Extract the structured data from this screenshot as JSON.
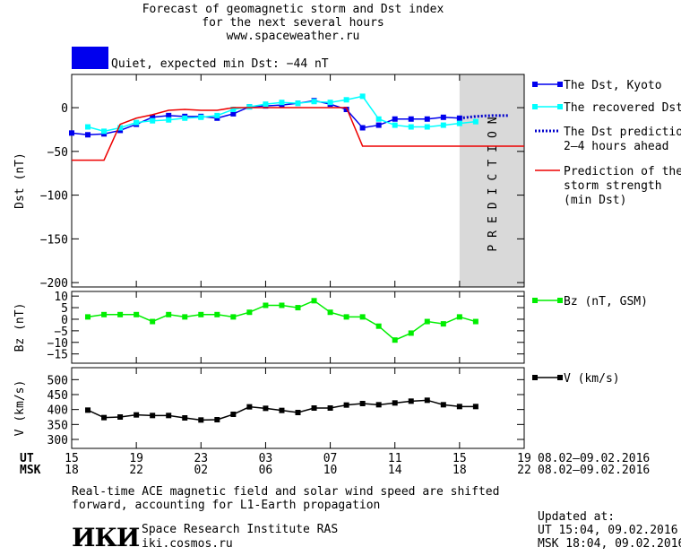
{
  "header": {
    "title_lines": [
      "Forecast of geomagnetic storm and Dst index",
      "for the next several hours",
      "www.spaceweather.ru"
    ],
    "status_text": "Quiet, expected min Dst: −44 nT",
    "status_color": "#0000ee"
  },
  "chart_data": [
    {
      "type": "line",
      "ylabel": "Dst (nT)",
      "ylim": [
        -205,
        38
      ],
      "yticks": [
        0,
        -50,
        -100,
        -150,
        -200
      ],
      "ytick_labels": [
        "0",
        "−50",
        "−100",
        "−150",
        "−200"
      ],
      "x_unit": "hours from 15 UT 08.02.2016",
      "xlim": [
        0,
        28
      ],
      "shaded_region": {
        "x_start": 24,
        "x_end": 28,
        "label": "PREDICTION",
        "color": "#d9d9d9"
      },
      "series": [
        {
          "name": "The Dst, Kyoto",
          "color": "#0000ee",
          "marker": "square",
          "x": [
            0,
            1,
            2,
            3,
            4,
            5,
            6,
            7,
            8,
            9,
            10,
            11,
            12,
            13,
            14,
            15,
            16,
            17,
            18,
            19,
            20,
            21,
            22,
            23,
            24
          ],
          "y": [
            -29,
            -31,
            -30,
            -26,
            -19,
            -11,
            -9,
            -10,
            -10,
            -12,
            -7,
            1,
            2,
            3,
            5,
            8,
            4,
            -2,
            -23,
            -20,
            -13,
            -13,
            -13,
            -11,
            -12
          ]
        },
        {
          "name": "The recovered Dst",
          "color": "#00ffff",
          "marker": "square",
          "x": [
            1,
            2,
            3,
            4,
            5,
            6,
            7,
            8,
            9,
            10,
            11,
            12,
            13,
            14,
            15,
            16,
            17,
            18,
            19,
            20,
            21,
            22,
            23,
            24,
            25
          ],
          "y": [
            -22,
            -27,
            -23,
            -17,
            -15,
            -14,
            -12,
            -11,
            -9,
            -2,
            1,
            4,
            6,
            5,
            7,
            6,
            9,
            13,
            -13,
            -20,
            -22,
            -22,
            -20,
            -18,
            -16
          ]
        },
        {
          "name": "The Dst prediction",
          "name_line2": "2–4 hours ahead",
          "color": "#0000cc",
          "dashed": true,
          "x": [
            24,
            25,
            26,
            27
          ],
          "y": [
            -12,
            -10,
            -9,
            -9
          ]
        },
        {
          "name": "Prediction of the",
          "name_line2": "storm strength",
          "name_line3": "(min Dst)",
          "color": "#ee0000",
          "step": true,
          "x": [
            0,
            2,
            3,
            4,
            5,
            6,
            7,
            8,
            9,
            10,
            11,
            12,
            13,
            14,
            15,
            16,
            17,
            18,
            19,
            20,
            21,
            22,
            23,
            24,
            25,
            26,
            27,
            28
          ],
          "y": [
            -60,
            -60,
            -19,
            -12,
            -8,
            -3,
            -2,
            -3,
            -3,
            0,
            0,
            0,
            0,
            0,
            0,
            0,
            0,
            -44,
            -44,
            -44,
            -44,
            -44,
            -44,
            -44,
            -44,
            -44,
            -44,
            -44
          ]
        }
      ],
      "prediction_label": "PREDICTION"
    },
    {
      "type": "line",
      "ylabel": "Bz (nT)",
      "ylim": [
        -19,
        12
      ],
      "yticks": [
        10,
        5,
        0,
        -5,
        -10,
        -15
      ],
      "ytick_labels": [
        "10",
        "5",
        "0",
        "−5",
        "−10",
        "−15"
      ],
      "series": [
        {
          "name": "Bz (nT, GSM)",
          "color": "#00ee00",
          "marker": "square",
          "x": [
            1,
            2,
            3,
            4,
            5,
            6,
            7,
            8,
            9,
            10,
            11,
            12,
            13,
            14,
            15,
            16,
            17,
            18,
            19,
            20,
            21,
            22,
            23,
            24,
            25
          ],
          "y": [
            1,
            2,
            2,
            2,
            -1,
            2,
            1,
            2,
            2,
            1,
            3,
            6,
            6,
            5,
            8,
            3,
            1,
            1,
            -3,
            -9,
            -6,
            -1,
            -2,
            1,
            -1
          ]
        }
      ]
    },
    {
      "type": "line",
      "ylabel": "V (km/s)",
      "ylim": [
        270,
        540
      ],
      "yticks": [
        500,
        450,
        400,
        350,
        300
      ],
      "ytick_labels": [
        "500",
        "450",
        "400",
        "350",
        "300"
      ],
      "series": [
        {
          "name": "V (km/s)",
          "color": "#000000",
          "marker": "square",
          "x": [
            1,
            2,
            3,
            4,
            5,
            6,
            7,
            8,
            9,
            10,
            11,
            12,
            13,
            14,
            15,
            16,
            17,
            18,
            19,
            20,
            21,
            22,
            23,
            24,
            25
          ],
          "y": [
            398,
            373,
            375,
            382,
            380,
            380,
            372,
            365,
            366,
            384,
            409,
            404,
            397,
            390,
            405,
            405,
            415,
            420,
            416,
            422,
            428,
            431,
            416,
            410,
            410
          ]
        }
      ]
    }
  ],
  "x_axis": {
    "ut_label": "UT",
    "msk_label": "MSK",
    "ut_ticks": [
      "15",
      "19",
      "23",
      "03",
      "07",
      "11",
      "15",
      "19"
    ],
    "msk_ticks": [
      "18",
      "22",
      "02",
      "06",
      "10",
      "14",
      "18",
      "22"
    ],
    "date_range": "08.02–09.02.2016"
  },
  "footer": {
    "note_line1": "Real-time ACE magnetic field and solar wind speed are shifted",
    "note_line2": "forward, accounting for L1-Earth propagation",
    "logo_text": "ИКИ",
    "institute_name": "Space Research Institute RAS",
    "institute_url": "iki.cosmos.ru",
    "updated_label": "Updated at:",
    "updated_ut": "UT  15:04, 09.02.2016",
    "updated_msk": "MSK 18:04, 09.02.2016"
  }
}
